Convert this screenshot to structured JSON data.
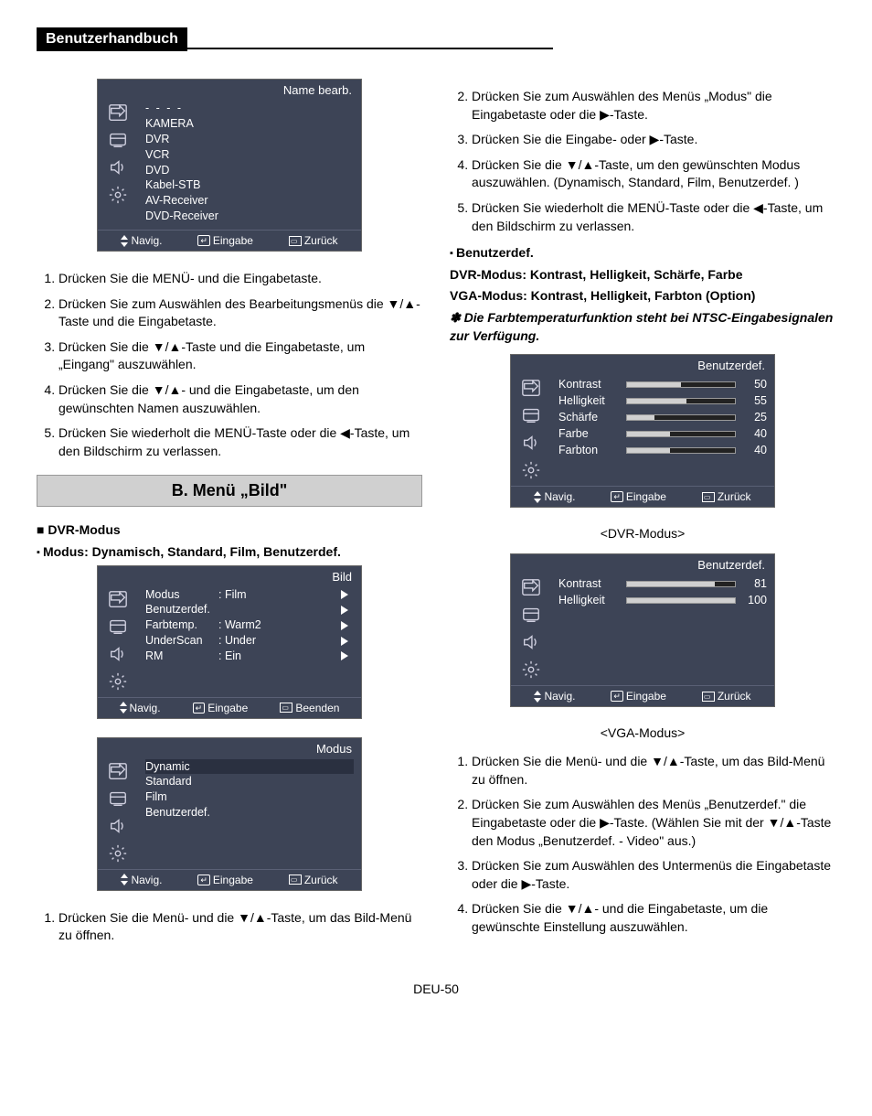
{
  "header": "Benutzerhandbuch",
  "pageNum": "DEU-50",
  "panel1": {
    "title": "Name bearb.",
    "dash": "- - - -",
    "items": [
      "KAMERA",
      "DVR",
      "VCR",
      "DVD",
      "Kabel-STB",
      "AV-Receiver",
      "DVD-Receiver"
    ],
    "footer": {
      "nav": "Navig.",
      "enter": "Eingabe",
      "back": "Zurück"
    }
  },
  "leftList1": [
    "Drücken Sie die MENÜ- und die Eingabetaste.",
    "Drücken Sie zum Auswählen des Bearbeitungsmenüs die ▼/▲-Taste und die Eingabetaste.",
    "Drücken Sie die ▼/▲-Taste und die Eingabetaste, um „Eingang\" auszuwählen.",
    "Drücken Sie die ▼/▲- und die Eingabetaste, um den gewünschten Namen auszuwählen.",
    "Drücken Sie wiederholt die MENÜ-Taste oder die ◀-Taste, um den Bildschirm zu verlassen."
  ],
  "sectionB": "B. Menü „Bild\"",
  "dvrModus": "DVR-Modus",
  "modusLine": "Modus: Dynamisch, Standard, Film, Benutzerdef.",
  "panel2": {
    "title": "Bild",
    "rows": [
      {
        "lbl": "Modus",
        "val": ": Film"
      },
      {
        "lbl": "Benutzerdef.",
        "val": ""
      },
      {
        "lbl": "Farbtemp.",
        "val": ": Warm2"
      },
      {
        "lbl": "UnderScan",
        "val": ": Under"
      },
      {
        "lbl": "RM",
        "val": ": Ein"
      }
    ],
    "footer": {
      "nav": "Navig.",
      "enter": "Eingabe",
      "back": "Beenden"
    }
  },
  "panel3": {
    "title": "Modus",
    "items": [
      "Dynamic",
      "Standard",
      "Film",
      "Benutzerdef."
    ],
    "footer": {
      "nav": "Navig.",
      "enter": "Eingabe",
      "back": "Zurück"
    }
  },
  "leftBottom": "Drücken Sie die Menü- und die ▼/▲-Taste, um das Bild-Menü zu öffnen.",
  "rightTop": [
    "Drücken Sie zum Auswählen des Menüs „Modus\" die Eingabetaste oder die ▶-Taste.",
    "Drücken Sie die Eingabe- oder ▶-Taste.",
    "Drücken Sie die ▼/▲-Taste, um den gewünschten Modus auszuwählen. (Dynamisch, Standard, Film, Benutzerdef. )",
    "Drücken Sie wiederholt die MENÜ-Taste oder die ◀-Taste, um den Bildschirm zu verlassen."
  ],
  "benutzerdef": "Benutzerdef.",
  "dvrLine": "DVR-Modus: Kontrast, Helligkeit, Schärfe, Farbe",
  "vgaLine": "VGA-Modus: Kontrast, Helligkeit, Farbton (Option)",
  "note": "Die Farbtemperaturfunktion steht bei NTSC-Eingabesignalen zur Verfügung.",
  "panel4": {
    "title": "Benutzerdef.",
    "rows": [
      {
        "lbl": "Kontrast",
        "val": "50",
        "pct": 50
      },
      {
        "lbl": "Helligkeit",
        "val": "55",
        "pct": 55
      },
      {
        "lbl": "Schärfe",
        "val": "25",
        "pct": 25
      },
      {
        "lbl": "Farbe",
        "val": "40",
        "pct": 40
      },
      {
        "lbl": "Farbton",
        "val": "40",
        "pct": 40
      }
    ],
    "footer": {
      "nav": "Navig.",
      "enter": "Eingabe",
      "back": "Zurück"
    }
  },
  "caption4": "<DVR-Modus>",
  "panel5": {
    "title": "Benutzerdef.",
    "rows": [
      {
        "lbl": "Kontrast",
        "val": "81",
        "pct": 81
      },
      {
        "lbl": "Helligkeit",
        "val": "100",
        "pct": 100
      }
    ],
    "footer": {
      "nav": "Navig.",
      "enter": "Eingabe",
      "back": "Zurück"
    }
  },
  "caption5": "<VGA-Modus>",
  "rightBottom": [
    "Drücken Sie die Menü- und die ▼/▲-Taste, um das Bild-Menü zu öffnen.",
    "Drücken Sie zum Auswählen des Menüs „Benutzerdef.\" die Eingabetaste oder die ▶-Taste. (Wählen Sie mit der ▼/▲-Taste den Modus „Benutzerdef. - Video\" aus.)",
    "Drücken Sie zum Auswählen des Untermenüs die Eingabetaste oder die ▶-Taste.",
    "Drücken Sie die ▼/▲- und die Eingabetaste, um die gewünschte Einstellung auszuwählen."
  ]
}
